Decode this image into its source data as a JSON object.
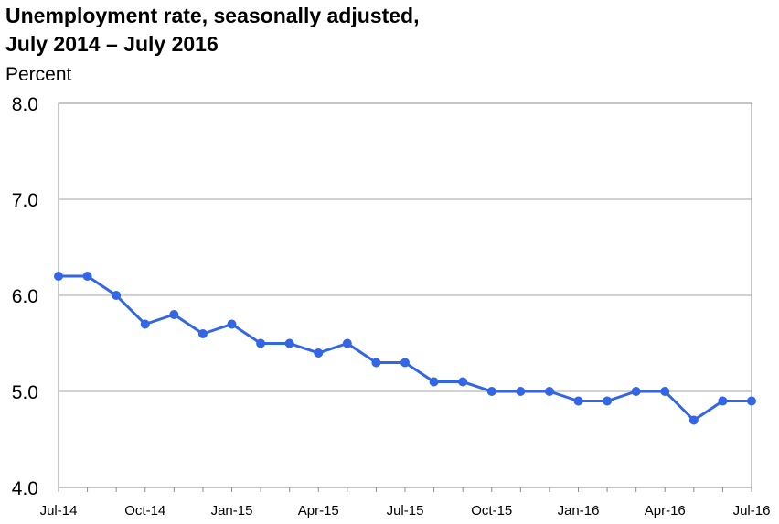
{
  "chart_data": {
    "type": "line",
    "title": [
      "Unemployment rate, seasonally adjusted,",
      "July 2014 – July 2016"
    ],
    "ylabel": "Percent",
    "xlabel": "",
    "ylim": [
      4.0,
      8.0
    ],
    "yticks": [
      "8.0",
      "7.0",
      "6.0",
      "5.0",
      "4.0"
    ],
    "x_tick_labels": [
      "Jul-14",
      "Oct-14",
      "Jan-15",
      "Apr-15",
      "Jul-15",
      "Oct-15",
      "Jan-16",
      "Apr-16",
      "Jul-16"
    ],
    "x": [
      "Jul-14",
      "Aug-14",
      "Sep-14",
      "Oct-14",
      "Nov-14",
      "Dec-14",
      "Jan-15",
      "Feb-15",
      "Mar-15",
      "Apr-15",
      "May-15",
      "Jun-15",
      "Jul-15",
      "Aug-15",
      "Sep-15",
      "Oct-15",
      "Nov-15",
      "Dec-15",
      "Jan-16",
      "Feb-16",
      "Mar-16",
      "Apr-16",
      "May-16",
      "Jun-16",
      "Jul-16"
    ],
    "series": [
      {
        "values": [
          6.2,
          6.2,
          6.0,
          5.7,
          5.8,
          5.6,
          5.7,
          5.5,
          5.5,
          5.4,
          5.5,
          5.3,
          5.3,
          5.1,
          5.1,
          5.0,
          5.0,
          5.0,
          4.9,
          4.9,
          5.0,
          5.0,
          4.7,
          4.9,
          4.9
        ],
        "color": "#3366e6"
      }
    ],
    "grid": true,
    "gridline_color": "#a6a6a6"
  }
}
